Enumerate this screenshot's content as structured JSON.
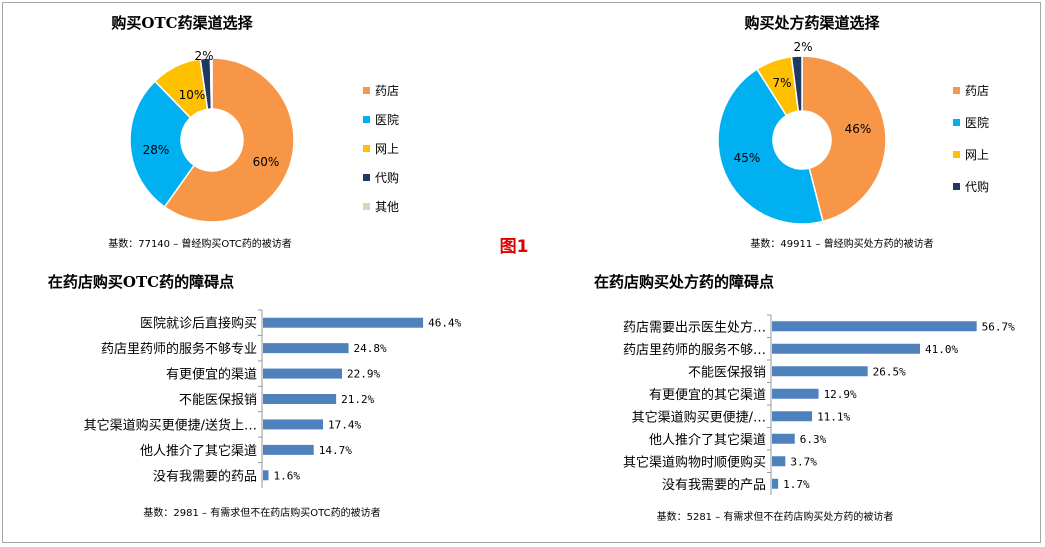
{
  "figure_label": "图1",
  "colors": {
    "pharmacy": "#f79646",
    "hospital": "#00b0f0",
    "online": "#ffc000",
    "agent": "#1f3864",
    "other": "#c6e0b4",
    "bar": "#4f81bd",
    "figure_label": "#e00000"
  },
  "chart_data": [
    {
      "type": "pie",
      "title": "购买OTC药渠道选择",
      "labels": [
        "药店",
        "医院",
        "网上",
        "代购",
        "其他"
      ],
      "values": [
        60,
        28,
        10,
        2,
        0.3
      ],
      "value_labels": [
        "60%",
        "28%",
        "10%",
        "2%",
        ""
      ],
      "colors": [
        "#f79646",
        "#00b0f0",
        "#ffc000",
        "#1f3864",
        "#c6e0b4"
      ],
      "legend": "right",
      "note": "基数：77140 – 曾经购买OTC药的被访者"
    },
    {
      "type": "pie",
      "title": "购买处方药渠道选择",
      "labels": [
        "药店",
        "医院",
        "网上",
        "代购"
      ],
      "values": [
        46,
        45,
        7,
        2
      ],
      "value_labels": [
        "46%",
        "45%",
        "7%",
        "2%"
      ],
      "colors": [
        "#f79646",
        "#00b0f0",
        "#ffc000",
        "#1f3864"
      ],
      "legend": "right",
      "note": "基数：49911 – 曾经购买处方药的被访者"
    },
    {
      "type": "bar",
      "orientation": "horizontal",
      "title": "在药店购买OTC药的障碍点",
      "categories": [
        "医院就诊后直接购买",
        "药店里药师的服务不够专业",
        "有更便宜的渠道",
        "不能医保报销",
        "其它渠道购买更便捷/送货上…",
        "他人推介了其它渠道",
        "没有我需要的药品"
      ],
      "values": [
        46.4,
        24.8,
        22.9,
        21.2,
        17.4,
        14.7,
        1.6
      ],
      "value_labels": [
        "46.4%",
        "24.8%",
        "22.9%",
        "21.2%",
        "17.4%",
        "14.7%",
        "1.6%"
      ],
      "note": "基数：2981 – 有需求但不在药店购买OTC药的被访者"
    },
    {
      "type": "bar",
      "orientation": "horizontal",
      "title": "在药店购买处方药的障碍点",
      "categories": [
        "药店需要出示医生处方…",
        "药店里药师的服务不够…",
        "不能医保报销",
        "有更便宜的其它渠道",
        "其它渠道购买更便捷/…",
        "他人推介了其它渠道",
        "其它渠道购物时顺便购买",
        "没有我需要的产品"
      ],
      "values": [
        56.7,
        41.0,
        26.5,
        12.9,
        11.1,
        6.3,
        3.7,
        1.7
      ],
      "value_labels": [
        "56.7%",
        "41.0%",
        "26.5%",
        "12.9%",
        "11.1%",
        "6.3%",
        "3.7%",
        "1.7%"
      ],
      "note": "基数：5281 – 有需求但不在药店购买处方药的被访者"
    }
  ]
}
